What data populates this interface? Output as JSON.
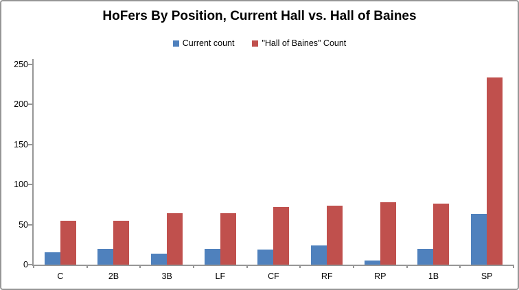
{
  "chart_data": {
    "type": "bar",
    "title": "HoFers By Position, Current Hall vs. Hall of Baines",
    "categories": [
      "C",
      "2B",
      "3B",
      "LF",
      "CF",
      "RF",
      "RP",
      "1B",
      "SP"
    ],
    "series": [
      {
        "name": "Current count",
        "color": "#4F81BD",
        "values": [
          15,
          20,
          14,
          20,
          19,
          24,
          5,
          20,
          63
        ]
      },
      {
        "name": "\"Hall of Baines\" Count",
        "color": "#C0504D",
        "values": [
          55,
          55,
          64,
          64,
          72,
          74,
          78,
          76,
          234
        ]
      }
    ],
    "ylim": [
      0,
      250
    ],
    "yticks": [
      0,
      50,
      100,
      150,
      200,
      250
    ],
    "grid": false,
    "legend_position": "top",
    "axis_color": "#969696",
    "text_color": "#000000",
    "background_color": "#ffffff"
  }
}
